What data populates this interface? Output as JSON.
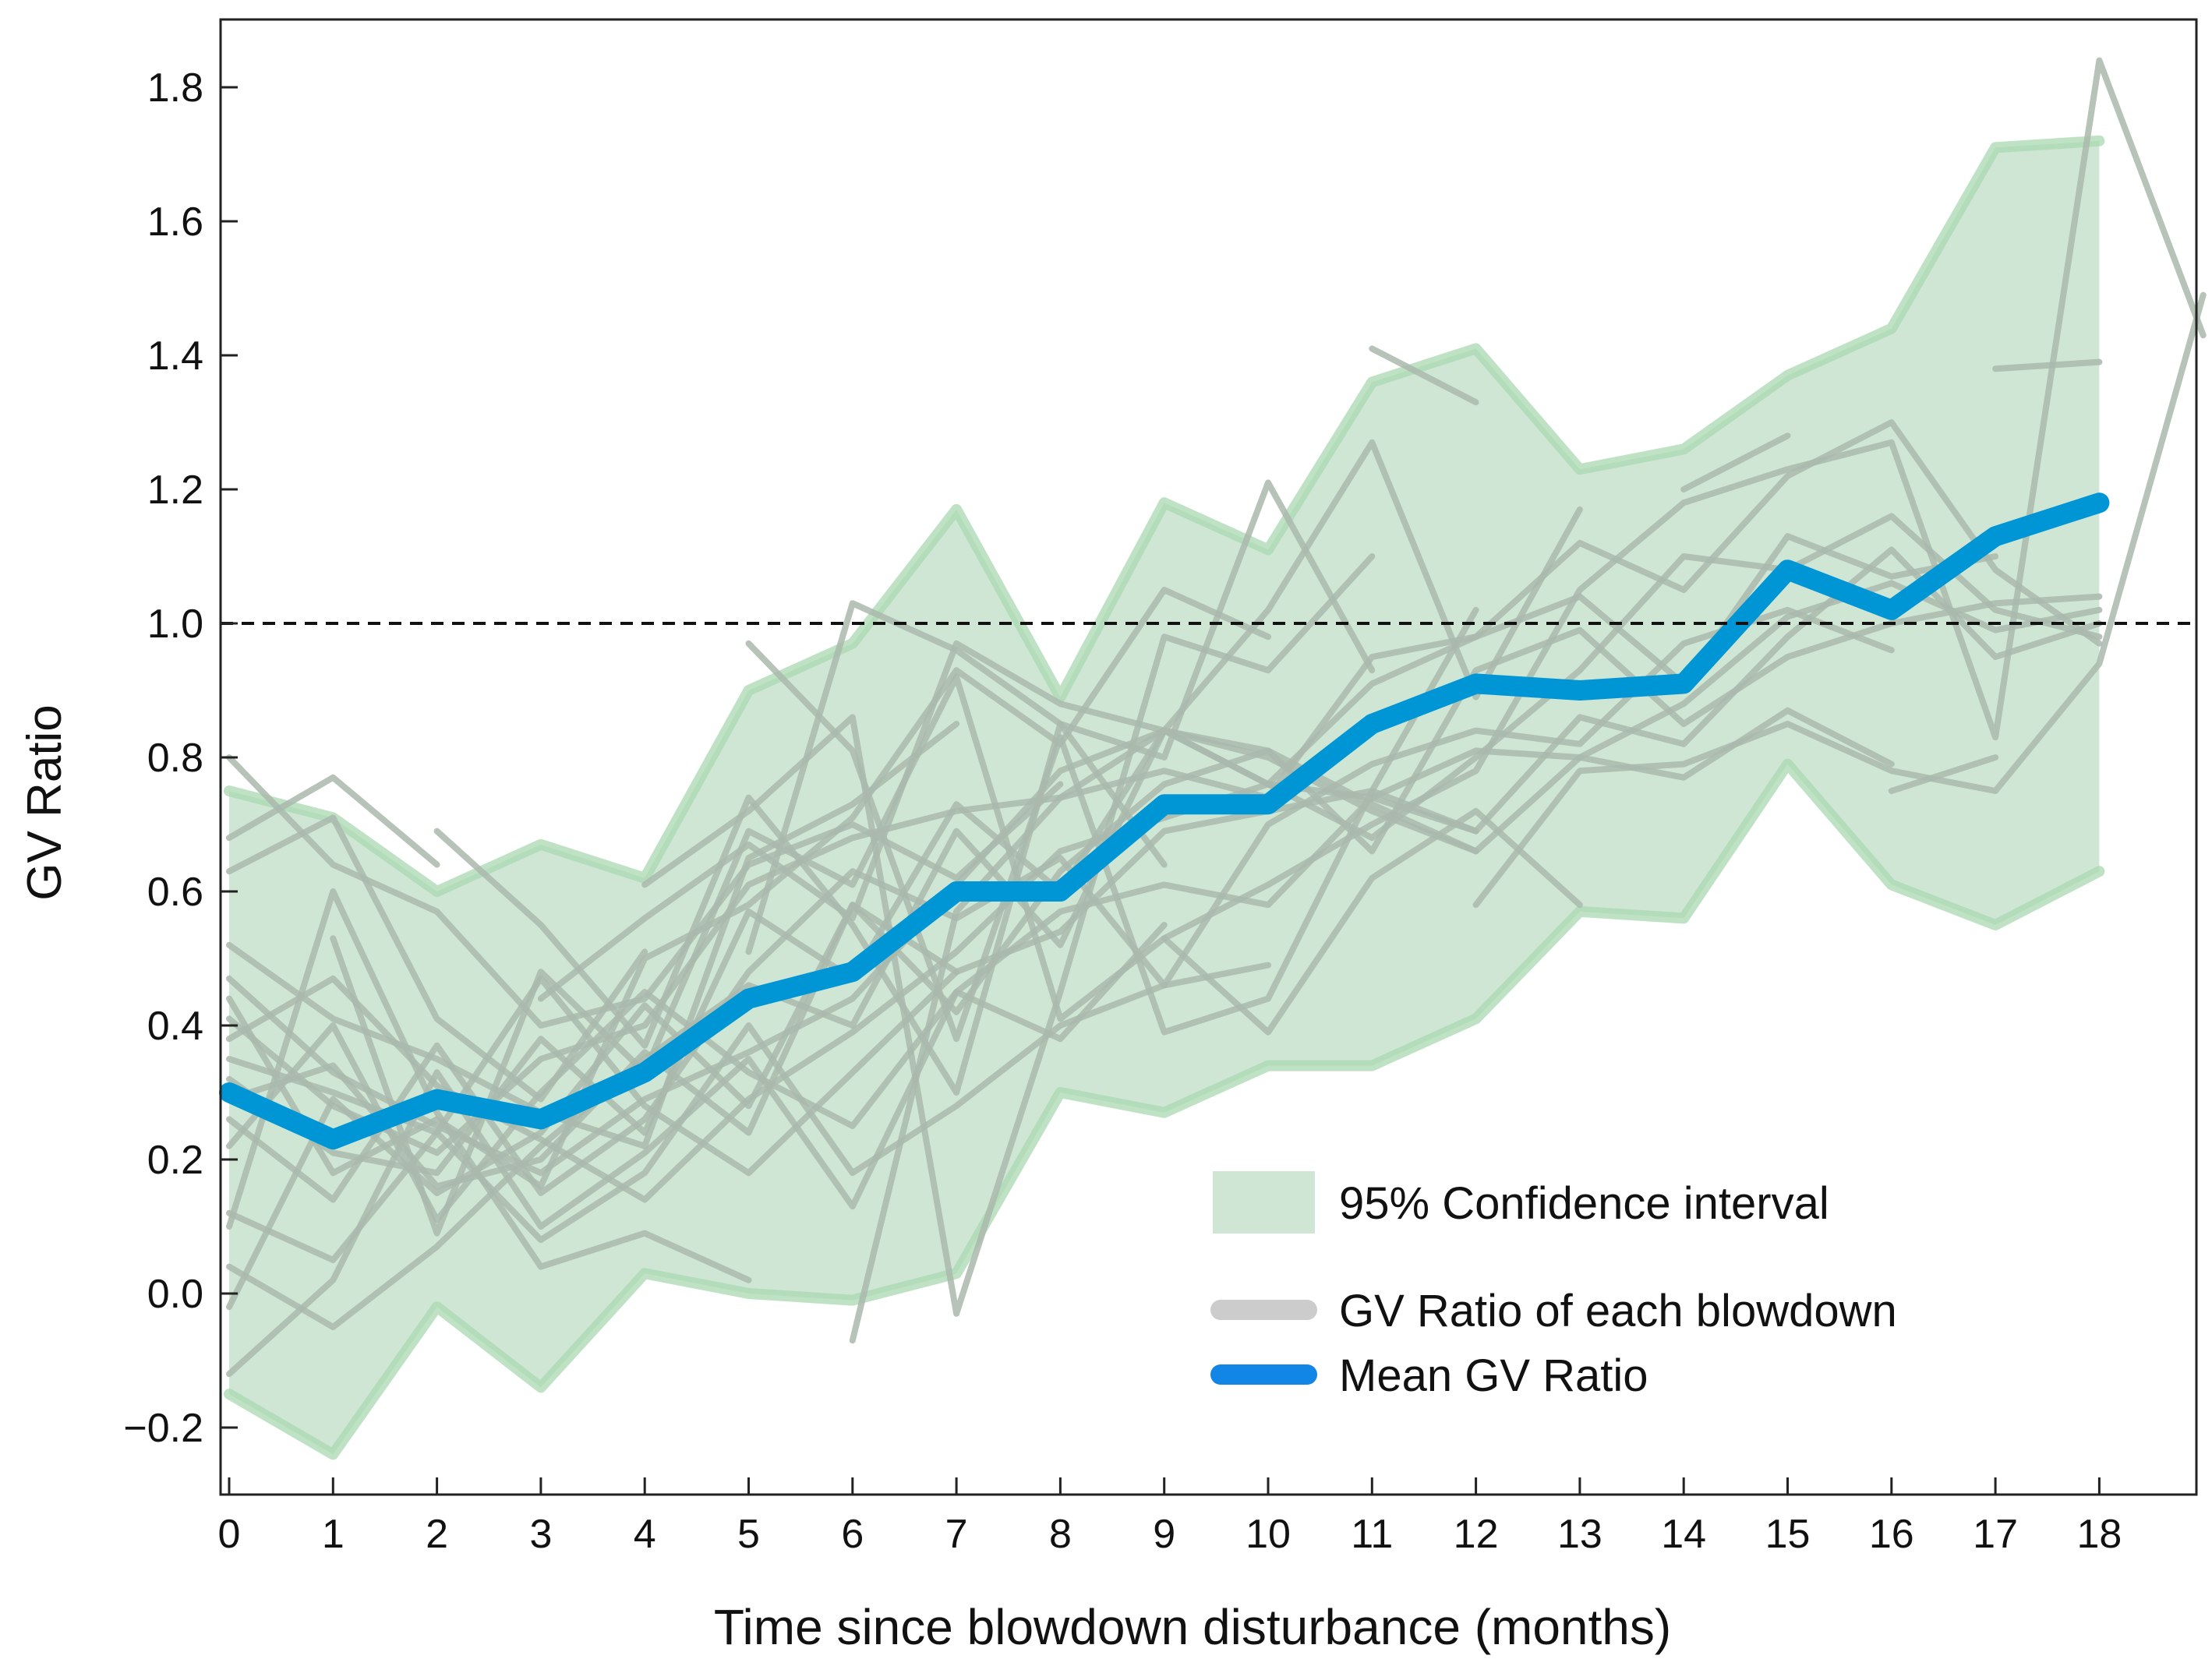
{
  "chart_data": {
    "type": "line",
    "title": "",
    "xlabel": "Time since blowdown disturbance (months)",
    "ylabel": "GV Ratio",
    "xlim": [
      -0.1,
      18.6
    ],
    "ylim": [
      -0.3,
      1.9
    ],
    "x_ticks": [
      "0",
      "1",
      "2",
      "3",
      "4",
      "5",
      "6",
      "7",
      "8",
      "9",
      "10",
      "11",
      "12",
      "13",
      "14",
      "15",
      "16",
      "17",
      "18"
    ],
    "y_ticks": [
      "−0.2",
      "0.0",
      "0.2",
      "0.4",
      "0.6",
      "0.8",
      "1.0",
      "1.2",
      "1.4",
      "1.6",
      "1.8"
    ],
    "y_tick_values": [
      -0.2,
      0.0,
      0.2,
      0.4,
      0.6,
      0.8,
      1.0,
      1.2,
      1.4,
      1.6,
      1.8
    ],
    "reference_line": {
      "y": 1.0,
      "style": "dashed"
    },
    "x": [
      0,
      1,
      2,
      3,
      4,
      5,
      6,
      7,
      8,
      9,
      10,
      11,
      12,
      13,
      14,
      15,
      16,
      17,
      18
    ],
    "series": [
      {
        "name": "Mean GV Ratio",
        "values": [
          0.3,
          0.23,
          0.29,
          0.26,
          0.33,
          0.44,
          0.48,
          0.6,
          0.6,
          0.73,
          0.73,
          0.85,
          0.91,
          0.9,
          0.91,
          1.08,
          1.02,
          1.13,
          1.18
        ]
      }
    ],
    "confidence_interval": {
      "name": "95% Confidence interval",
      "upper": [
        0.75,
        0.71,
        0.6,
        0.67,
        0.62,
        0.9,
        0.97,
        1.17,
        0.89,
        1.18,
        1.11,
        1.36,
        1.41,
        1.23,
        1.26,
        1.37,
        1.44,
        1.71,
        1.72
      ],
      "lower": [
        -0.15,
        -0.24,
        -0.02,
        -0.14,
        0.03,
        0.0,
        -0.01,
        0.03,
        0.3,
        0.27,
        0.34,
        0.34,
        0.41,
        0.57,
        0.56,
        0.79,
        0.61,
        0.55,
        0.63
      ]
    },
    "individual_series": [
      {
        "name": "GV Ratio of each blowdown",
        "x_start": 0,
        "values": [
          0.8,
          0.64,
          0.57,
          0.4,
          0.44,
          0.64,
          0.7,
          0.62,
          0.76
        ]
      },
      {
        "name": "GV Ratio of each blowdown",
        "x_start": 0,
        "values": [
          0.68,
          0.77,
          0.64
        ]
      },
      {
        "name": "GV Ratio of each blowdown",
        "x_start": 0,
        "values": [
          0.52,
          0.41,
          0.35,
          0.27,
          0.22,
          0.65,
          0.73,
          0.85
        ]
      },
      {
        "name": "GV Ratio of each blowdown",
        "x_start": 0,
        "values": [
          0.47,
          0.33,
          0.25,
          0.18,
          0.29,
          0.36,
          0.44,
          0.61,
          0.78,
          0.84,
          0.81,
          0.73,
          0.66,
          0.8,
          0.88,
          1.01,
          1.06,
          0.99,
          1.02
        ]
      },
      {
        "name": "GV Ratio of each blowdown",
        "x_start": 0,
        "values": [
          0.44,
          0.18,
          0.26,
          0.16,
          0.5,
          0.58,
          0.71,
          0.93,
          0.82,
          1.05,
          0.98
        ]
      },
      {
        "name": "GV Ratio of each blowdown",
        "x_start": 0,
        "values": [
          0.41,
          0.28,
          0.21,
          0.35,
          0.4,
          0.61,
          0.68,
          0.72,
          0.74,
          0.78,
          0.74,
          0.95,
          0.98,
          1.12,
          1.05,
          1.22,
          1.3,
          1.08,
          0.97
        ]
      },
      {
        "name": "GV Ratio of each blowdown",
        "x_start": 0,
        "values": [
          0.38,
          0.47,
          0.31,
          0.23,
          0.14,
          0.29,
          0.39,
          0.51,
          0.66,
          0.71,
          0.76,
          0.68,
          0.8,
          0.93,
          1.1,
          1.08,
          1.16,
          1.02,
          0.98
        ]
      },
      {
        "name": "GV Ratio of each blowdown",
        "x_start": 0,
        "values": [
          0.35,
          0.3,
          0.24,
          0.47,
          0.28,
          0.18,
          0.33,
          0.48,
          0.54,
          0.69,
          0.72,
          0.75,
          0.69,
          0.86,
          0.82,
          0.98,
          1.11,
          0.95,
          1.0
        ]
      },
      {
        "name": "GV Ratio of each blowdown",
        "x_start": 0,
        "values": [
          0.32,
          0.21,
          0.18,
          0.38,
          0.24,
          0.57,
          0.47,
          0.73,
          0.6,
          0.84,
          0.76,
          0.91,
          0.98,
          1.04,
          0.91,
          1.13,
          1.07,
          1.1
        ]
      },
      {
        "name": "GV Ratio of each blowdown",
        "x_start": 0,
        "values": [
          0.29,
          0.34,
          0.16,
          0.2,
          0.36,
          0.24,
          0.58,
          0.42,
          0.63,
          0.76,
          0.81,
          0.66,
          0.93,
          0.99,
          0.85,
          0.95,
          1.0,
          1.03,
          1.04
        ]
      },
      {
        "name": "GV Ratio of each blowdown",
        "x_start": 0,
        "values": [
          0.26,
          0.14,
          0.37,
          0.15,
          0.26,
          0.48,
          0.63,
          0.56,
          0.65,
          0.46,
          0.7,
          0.79,
          0.84,
          0.82,
          0.97,
          1.02,
          0.96
        ]
      },
      {
        "name": "GV Ratio of each blowdown",
        "x_start": 0,
        "values": [
          0.22,
          0.4,
          0.11,
          0.3,
          0.45,
          0.33,
          0.25,
          0.45,
          0.57,
          0.61,
          0.58,
          0.74,
          0.81,
          0.8,
          0.77,
          0.87,
          0.79
        ]
      },
      {
        "name": "GV Ratio of each blowdown",
        "x_start": 0,
        "values": [
          0.12,
          0.05,
          0.24,
          0.08,
          0.18,
          0.4,
          0.18,
          0.28,
          0.4,
          0.46,
          0.49
        ]
      },
      {
        "name": "GV Ratio of each blowdown",
        "x_start": 0,
        "values": [
          0.04,
          -0.05,
          0.07,
          0.22,
          0.35,
          0.46,
          0.4,
          0.69,
          0.52,
          0.84,
          0.8,
          0.72,
          0.66
        ]
      },
      {
        "name": "GV Ratio of each blowdown",
        "x_start": 0,
        "values": [
          -0.02,
          0.29,
          0.15,
          0.24,
          0.43,
          0.28,
          0.58,
          0.48
        ]
      },
      {
        "name": "GV Ratio of each blowdown",
        "x_start": 0,
        "values": [
          -0.12,
          0.02,
          0.33,
          0.1,
          0.21,
          0.35,
          0.13,
          0.45,
          0.38,
          0.55
        ]
      },
      {
        "name": "GV Ratio of each blowdown",
        "x_start": 0,
        "values": [
          0.63,
          0.71,
          0.41,
          0.29,
          0.51
        ]
      },
      {
        "name": "GV Ratio of each blowdown",
        "x_start": 0,
        "values": [
          0.1,
          0.6,
          0.27,
          0.04,
          0.09,
          0.02
        ]
      },
      {
        "name": "GV Ratio of each blowdown",
        "x_start": 1,
        "values": [
          0.53,
          0.09,
          0.48,
          0.33,
          0.69,
          0.61,
          0.92,
          0.41,
          0.53,
          0.39,
          0.62,
          0.72,
          0.58
        ]
      },
      {
        "name": "GV Ratio of each blowdown",
        "x_start": 2,
        "values": [
          0.69,
          0.55,
          0.37,
          0.74,
          0.55,
          0.3,
          0.85,
          0.8,
          1.21,
          0.93
        ]
      },
      {
        "name": "GV Ratio of each blowdown",
        "x_start": 3,
        "values": [
          0.44,
          0.56,
          0.67,
          0.56,
          0.97,
          0.88,
          0.84,
          1.02,
          1.27,
          0.89,
          1.17
        ]
      },
      {
        "name": "GV Ratio of each blowdown",
        "x_start": 4,
        "values": [
          0.61,
          0.72,
          0.86,
          -0.03,
          0.45,
          0.98,
          0.93,
          1.1
        ]
      },
      {
        "name": "GV Ratio of each blowdown",
        "x_start": 5,
        "values": [
          0.97,
          0.81,
          0.38,
          0.83,
          0.39,
          0.44,
          0.75,
          1.02
        ]
      },
      {
        "name": "GV Ratio of each blowdown",
        "x_start": 5,
        "values": [
          0.51,
          1.03,
          0.96,
          0.85,
          0.64
        ]
      },
      {
        "name": "GV Ratio of each blowdown",
        "x_start": 6,
        "values": [
          -0.07,
          0.57,
          0.74,
          0.84,
          0.76,
          0.74,
          0.69
        ]
      },
      {
        "name": "GV Ratio of each blowdown",
        "x_start": 9,
        "values": [
          0.53,
          0.61,
          0.7,
          0.78,
          1.05,
          1.18,
          1.23,
          1.27,
          0.83,
          1.84,
          1.43
        ]
      },
      {
        "name": "GV Ratio of each blowdown",
        "x_start": 11,
        "values": [
          1.41,
          1.33
        ]
      },
      {
        "name": "GV Ratio of each blowdown",
        "x_start": 12,
        "values": [
          0.58,
          0.78,
          0.79,
          0.85,
          0.78,
          0.75,
          0.94,
          1.49
        ]
      },
      {
        "name": "GV Ratio of each blowdown",
        "x_start": 14,
        "values": [
          1.2,
          1.28
        ]
      },
      {
        "name": "GV Ratio of each blowdown",
        "x_start": 16,
        "values": [
          0.75,
          0.8
        ]
      },
      {
        "name": "GV Ratio of each blowdown",
        "x_start": 17,
        "values": [
          1.38,
          1.39
        ]
      }
    ],
    "legend": {
      "position": "bottom-right",
      "entries": [
        "95% Confidence interval",
        "GV Ratio of each blowdown",
        "Mean GV Ratio"
      ]
    },
    "colors": {
      "ci_fill": "#cfe6d5",
      "ci_edge": "#a9d8b0",
      "individual": "#aab8ad",
      "legend_gray": "#cccccc",
      "mean": "#0096d6",
      "legend_blue": "#1286e6",
      "axis": "#222222"
    }
  }
}
